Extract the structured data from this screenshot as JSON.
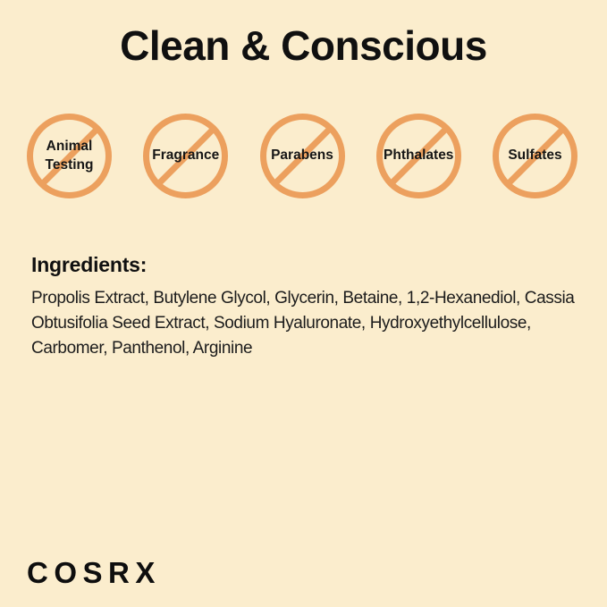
{
  "colors": {
    "background": "#FBEDCD",
    "accent": "#ECA05E",
    "text": "#101010"
  },
  "title": "Clean & Conscious",
  "badges": {
    "items": [
      {
        "label": "Animal\nTesting"
      },
      {
        "label": "Fragrance"
      },
      {
        "label": "Parabens"
      },
      {
        "label": "Phthalates"
      },
      {
        "label": "Sulfates"
      }
    ]
  },
  "ingredients": {
    "heading": "Ingredients:",
    "text": "Propolis Extract, Butylene Glycol, Glycerin, Betaine, 1,2-Hexanediol, Cassia Obtusifolia Seed Extract, Sodium Hyaluronate, Hydroxyethylcellulose, Carbomer, Panthenol, Arginine"
  },
  "brand": {
    "logo": "COSRX"
  }
}
